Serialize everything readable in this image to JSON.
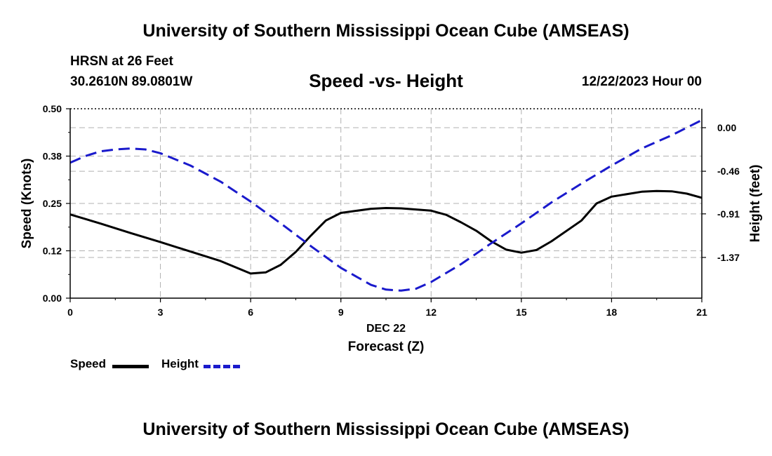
{
  "header": {
    "title": "University of Southern Mississippi Ocean Cube (AMSEAS)",
    "station": "HRSN at 26 Feet",
    "coords": "30.2610N  89.0801W",
    "subtitle": "Speed -vs- Height",
    "datetime": "12/22/2023 Hour 00"
  },
  "footer": {
    "title": "University of Southern Mississippi Ocean Cube (AMSEAS)"
  },
  "legend": {
    "speed_label": "Speed",
    "height_label": "Height"
  },
  "colors": {
    "speed": "#000000",
    "height": "#1a1acc",
    "grid": "#b0b0b0"
  },
  "chart_data": {
    "type": "line",
    "title": "Speed -vs- Height",
    "xlabel": "Forecast (Z)",
    "xsublabel": "DEC 22",
    "ylabel": "Speed (Knots)",
    "y2label": "Height (feet)",
    "xlim": [
      0,
      21
    ],
    "ylim": [
      0,
      0.5
    ],
    "y2lim": [
      -1.8,
      0.2
    ],
    "xticks": [
      0,
      3,
      6,
      9,
      12,
      15,
      18,
      21
    ],
    "yticks": [
      0.0,
      0.125,
      0.25,
      0.375,
      0.5
    ],
    "ytick_labels": [
      "0.00",
      "0.12",
      "0.25",
      "0.38",
      "0.50"
    ],
    "y2ticks": [
      0.0,
      -0.46,
      -0.91,
      -1.37
    ],
    "y2tick_labels": [
      "0.00",
      "-0.46",
      "-0.91",
      "-1.37"
    ],
    "legend_position": "bottom-left",
    "series": [
      {
        "name": "Speed",
        "axis": "left",
        "style": "solid",
        "x": [
          0,
          1,
          2,
          3,
          4,
          5,
          6,
          6.5,
          7,
          7.5,
          8,
          8.5,
          9,
          10,
          10.5,
          11,
          12,
          12.5,
          13,
          13.5,
          14,
          14.5,
          15,
          15.5,
          16,
          17,
          17.5,
          18,
          19,
          19.5,
          20,
          20.5,
          21
        ],
        "values": [
          0.221,
          0.197,
          0.172,
          0.148,
          0.123,
          0.098,
          0.065,
          0.068,
          0.088,
          0.122,
          0.165,
          0.205,
          0.225,
          0.236,
          0.238,
          0.237,
          0.231,
          0.22,
          0.2,
          0.178,
          0.15,
          0.128,
          0.12,
          0.127,
          0.15,
          0.205,
          0.25,
          0.268,
          0.281,
          0.283,
          0.282,
          0.276,
          0.265
        ]
      },
      {
        "name": "Height",
        "axis": "right",
        "style": "dashed",
        "x": [
          0,
          0.5,
          1,
          1.5,
          2,
          2.5,
          3,
          4,
          5,
          6,
          7,
          8,
          9,
          10,
          10.5,
          11,
          11.5,
          12,
          13,
          14,
          15,
          16,
          17,
          18,
          19,
          20,
          21
        ],
        "values": [
          -0.37,
          -0.3,
          -0.25,
          -0.23,
          -0.22,
          -0.23,
          -0.27,
          -0.4,
          -0.57,
          -0.78,
          -1.01,
          -1.25,
          -1.48,
          -1.66,
          -1.71,
          -1.72,
          -1.7,
          -1.63,
          -1.44,
          -1.22,
          -1.01,
          -0.79,
          -0.59,
          -0.4,
          -0.22,
          -0.08,
          0.08
        ]
      }
    ]
  }
}
